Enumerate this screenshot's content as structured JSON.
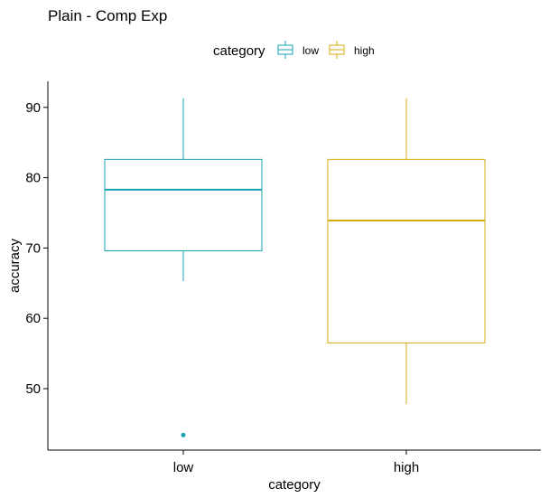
{
  "chart_data": {
    "type": "boxplot",
    "title": "Plain - Comp Exp",
    "xlabel": "category",
    "ylabel": "accuracy",
    "categories": [
      "low",
      "high"
    ],
    "ylim": [
      42,
      93
    ],
    "yticks": [
      50,
      60,
      70,
      80,
      90
    ],
    "grid": false,
    "legend": {
      "title": "category",
      "position": "top",
      "entries": [
        "low",
        "high"
      ]
    },
    "series": [
      {
        "name": "low",
        "color": "#1aa3b4",
        "whisker_low": 65.3,
        "q1": 69.6,
        "median": 78.3,
        "q3": 82.6,
        "whisker_high": 91.3,
        "outliers": [
          43.4
        ]
      },
      {
        "name": "high",
        "color": "#d4ac10",
        "whisker_low": 47.8,
        "q1": 56.5,
        "median": 73.9,
        "q3": 82.6,
        "whisker_high": 91.3,
        "outliers": []
      }
    ]
  }
}
